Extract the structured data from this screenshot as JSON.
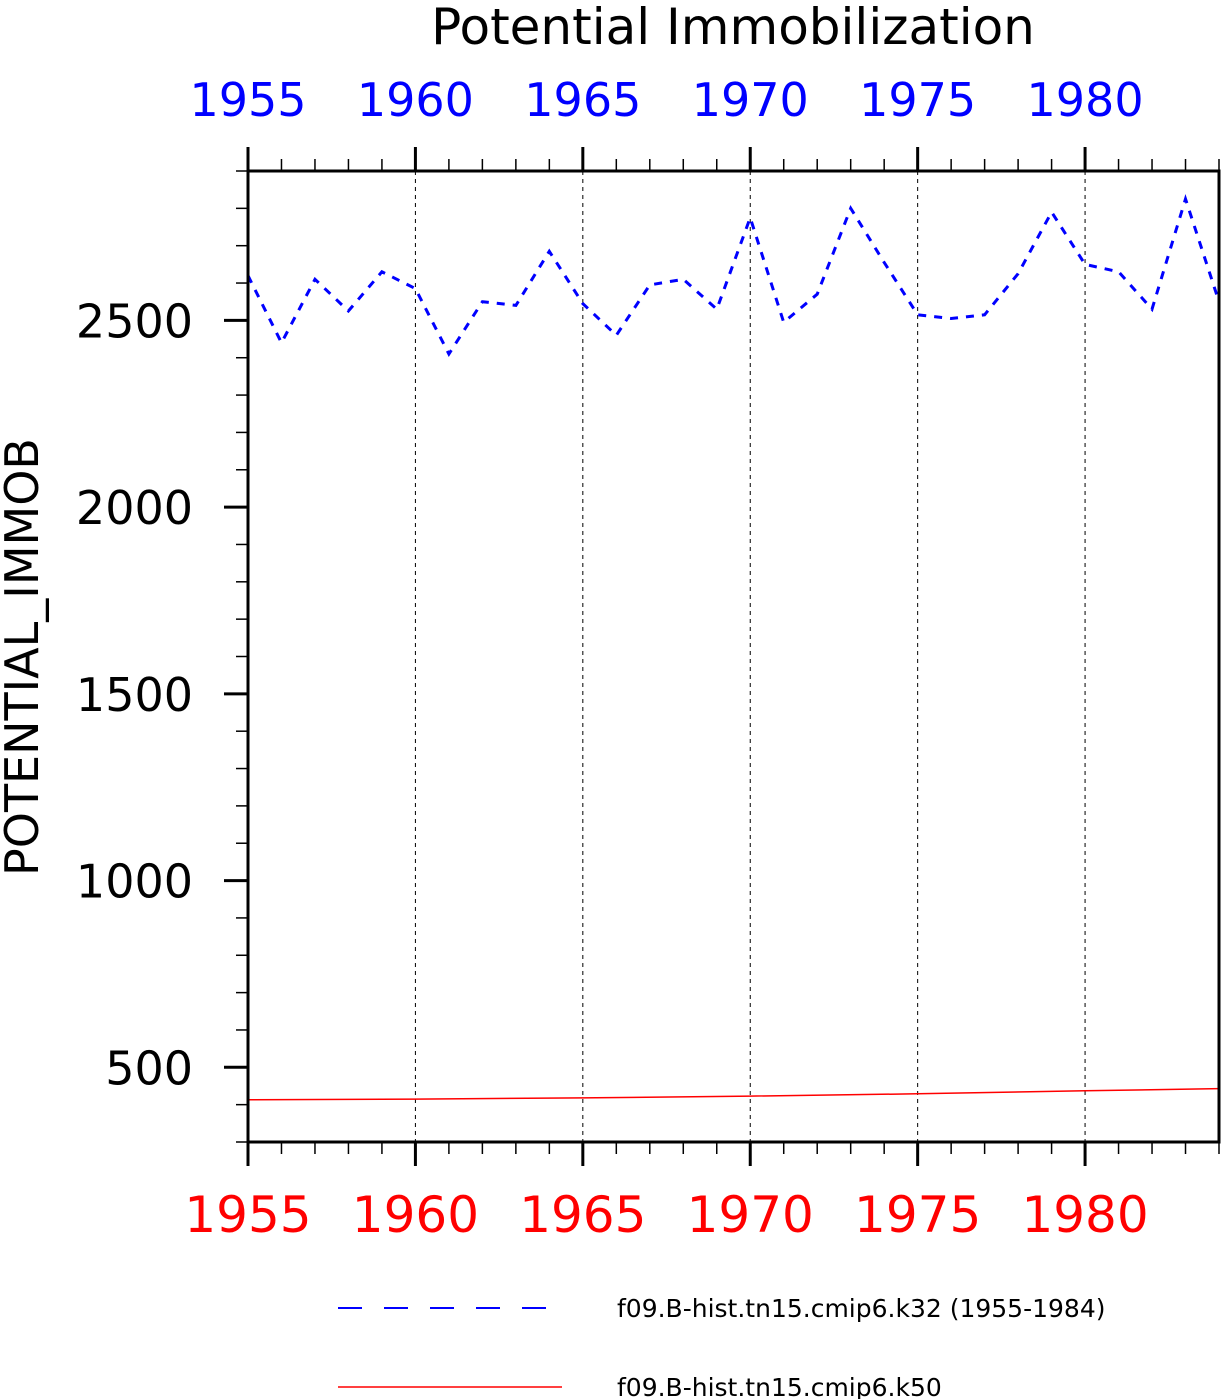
{
  "chart_data": {
    "type": "line",
    "title": "Potential Immobilization",
    "ylabel": "POTENTIAL_IMMOB",
    "xlim": [
      1955,
      1984
    ],
    "ylim": [
      300,
      2900
    ],
    "x_major_ticks": [
      1955,
      1960,
      1965,
      1970,
      1975,
      1980
    ],
    "y_major_ticks": [
      500,
      1000,
      1500,
      2000,
      2500
    ],
    "y_minor_step": 100,
    "x_minor_step": 1,
    "top_axis_color": "#0000ff",
    "bottom_axis_color": "#ff0000",
    "grid": "vertical dashed at major x ticks",
    "legend_position": "bottom",
    "series": [
      {
        "name": "f09.B-hist.tn15.cmip6.k32 (1955-1984)",
        "color": "#0000ff",
        "style": "dashed",
        "x": [
          1955,
          1956,
          1957,
          1958,
          1959,
          1960,
          1961,
          1962,
          1963,
          1964,
          1965,
          1966,
          1967,
          1968,
          1969,
          1970,
          1971,
          1972,
          1973,
          1974,
          1975,
          1976,
          1977,
          1978,
          1979,
          1980,
          1981,
          1982,
          1983,
          1984
        ],
        "values": [
          2620,
          2440,
          2610,
          2525,
          2630,
          2585,
          2410,
          2550,
          2540,
          2685,
          2545,
          2460,
          2595,
          2610,
          2530,
          2775,
          2495,
          2570,
          2800,
          2655,
          2515,
          2505,
          2515,
          2625,
          2790,
          2650,
          2630,
          2530,
          2825,
          2550
        ]
      },
      {
        "name": "f09.B-hist.tn15.cmip6.k50",
        "color": "#ff0000",
        "style": "solid",
        "x": [
          1955,
          1960,
          1965,
          1970,
          1975,
          1980,
          1984
        ],
        "values": [
          413,
          415,
          418,
          423,
          429,
          437,
          443
        ]
      }
    ]
  }
}
